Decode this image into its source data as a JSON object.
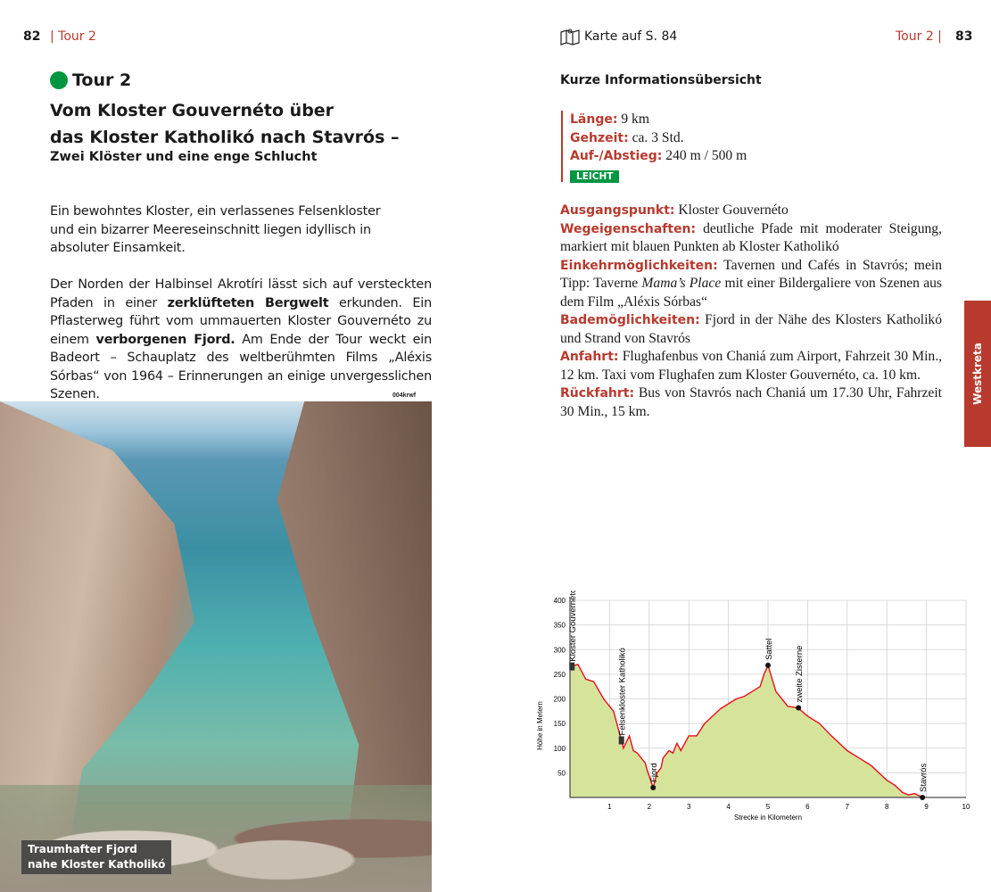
{
  "left_page": {
    "page_number": "82",
    "running_head": "| Tour 2",
    "tour_label": "Tour 2",
    "tour_color": "#00963f",
    "title_line1": "Vom Kloster Gouvernéto über",
    "title_line2": "das Kloster Katholikó nach Stavrós –",
    "subtitle": "Zwei Klöster und eine enge Schlucht",
    "intro": [
      "Ein bewohntes Kloster, ein verlassenes Felsenkloster",
      "und ein bizarrer Meereseinschnitt liegen idyllisch in",
      "absoluter Einsamkeit."
    ],
    "body": {
      "p1": "Der Norden der Halbinsel Akrotíri lässt sich auf versteckten Pfaden in einer ",
      "b1": "zerklüfteten Bergwelt",
      "p2": " erkunden. Ein Pflasterweg führt vom ummauerten Kloster Gouvernéto zu einem ",
      "b2": "verborgenen Fjord.",
      "p3": " Am Ende der Tour weckt ein Badeort – Schauplatz des weltberühmten Films „Aléxis Sórbas“ von 1964 – Erinnerungen an einige unvergesslichen Szenen."
    },
    "photo_credit": "004krwf",
    "photo_caption_line1": "Traumhafter Fjord",
    "photo_caption_line2": "nahe Kloster Katholikó"
  },
  "right_page": {
    "page_number": "83",
    "running_head": "Tour 2 |",
    "map_icon": "map-icon",
    "map_ref": "Karte auf S. 84",
    "section_title": "Kurze Informationsübersicht",
    "facts": [
      {
        "label": "Länge:",
        "value": " 9 km"
      },
      {
        "label": "Gehzeit:",
        "value": " ca. 3 Std."
      },
      {
        "label": "Auf-/Abstieg:",
        "value": " 240 m / 500 m"
      }
    ],
    "difficulty": "LEICHT",
    "details": [
      {
        "label": "Ausgangspunkt:",
        "value": " Kloster Gouvernéto"
      },
      {
        "label": "Wegeigenschaften:",
        "value": " deutliche Pfade mit moderater Steigung, markiert mit blauen Punkten ab Kloster Katholikó"
      },
      {
        "label": "Einkehrmöglichkeiten:",
        "value": " Tavernen und Cafés in Stavrós; mein Tipp: Taverne ",
        "italic": "Mama’s Place",
        "value2": " mit einer Bildergaliere von Szenen aus dem Film „Aléxis Sórbas“"
      },
      {
        "label": "Bademöglichkeiten:",
        "value": " Fjord in der Nähe des Klosters Katholikó und Strand von Stavrós"
      },
      {
        "label": "Anfahrt:",
        "value": " Flughafenbus von Chaniá zum Airport, Fahrzeit 30 Min., 12 km. Taxi vom Flughafen zum Kloster Gouvernéto, ca. 10 km."
      },
      {
        "label": "Rückfahrt:",
        "value": " Bus von Stavrós nach Chaniá um 17.30 Uhr, Fahrzeit 30 Min., 15 km."
      }
    ],
    "side_tab": "Westkreta",
    "accent": "#b83a2e"
  },
  "chart_data": {
    "type": "area",
    "xlabel": "Strecke in Kilometern",
    "ylabel": "Höhe in Metern",
    "xlim": [
      0,
      10
    ],
    "ylim": [
      0,
      400
    ],
    "xticks": [
      1,
      2,
      3,
      4,
      5,
      6,
      7,
      8,
      9,
      10
    ],
    "yticks": [
      50,
      100,
      150,
      200,
      250,
      300,
      350,
      400
    ],
    "grid": true,
    "line_color": "#e3101b",
    "fill_color": "#d6e39a",
    "x": [
      0,
      0.2,
      0.4,
      0.6,
      0.85,
      0.9,
      1.0,
      1.1,
      1.3,
      1.35,
      1.5,
      1.6,
      1.7,
      1.8,
      1.9,
      1.95,
      2.1,
      2.2,
      2.3,
      2.35,
      2.5,
      2.6,
      2.7,
      2.8,
      3.0,
      3.2,
      3.4,
      3.6,
      3.8,
      4.0,
      4.2,
      4.4,
      4.6,
      4.8,
      4.9,
      5.0,
      5.2,
      5.5,
      5.75,
      6.0,
      6.3,
      6.6,
      7.0,
      7.3,
      7.6,
      8.0,
      8.2,
      8.4,
      8.55,
      8.7,
      8.9
    ],
    "y": [
      265,
      270,
      240,
      235,
      200,
      195,
      185,
      175,
      115,
      100,
      125,
      95,
      90,
      80,
      70,
      55,
      20,
      50,
      60,
      80,
      95,
      90,
      110,
      95,
      125,
      125,
      150,
      165,
      180,
      190,
      200,
      205,
      215,
      225,
      250,
      268,
      215,
      185,
      182,
      165,
      150,
      125,
      95,
      80,
      65,
      35,
      25,
      10,
      5,
      8,
      0
    ],
    "waypoints": [
      {
        "name": "Kloster Gouvernéto",
        "x": 0.05,
        "y": 265,
        "marker": "monastery"
      },
      {
        "name": "Felsenkloster Katholikó",
        "x": 1.3,
        "y": 115,
        "marker": "monastery"
      },
      {
        "name": "Fjord",
        "x": 2.1,
        "y": 20,
        "marker": "dot"
      },
      {
        "name": "Sattel",
        "x": 5.0,
        "y": 268,
        "marker": "dot"
      },
      {
        "name": "zweite Zisterne",
        "x": 5.77,
        "y": 182,
        "marker": "dot"
      },
      {
        "name": "Stavrós",
        "x": 8.9,
        "y": 0,
        "marker": "dot"
      }
    ]
  }
}
